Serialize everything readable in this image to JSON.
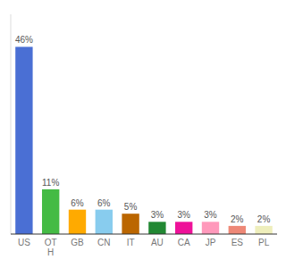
{
  "chart_data": {
    "type": "bar",
    "categories": [
      "US",
      "OT\nH",
      "GB",
      "CN",
      "IT",
      "AU",
      "CA",
      "JP",
      "ES",
      "PL"
    ],
    "values": [
      46,
      11,
      6,
      6,
      5,
      3,
      3,
      3,
      2,
      2
    ],
    "value_labels": [
      "46%",
      "11%",
      "6%",
      "6%",
      "5%",
      "3%",
      "3%",
      "3%",
      "2%",
      "2%"
    ],
    "colors": [
      "#4a6fd4",
      "#44bb44",
      "#ffaa00",
      "#88ccee",
      "#bb6600",
      "#228833",
      "#ee1199",
      "#ff99bb",
      "#ee8877",
      "#eeeebb"
    ],
    "ylim": [
      0,
      54
    ],
    "data_labels": true,
    "tick_labels": "x",
    "grid": false
  }
}
